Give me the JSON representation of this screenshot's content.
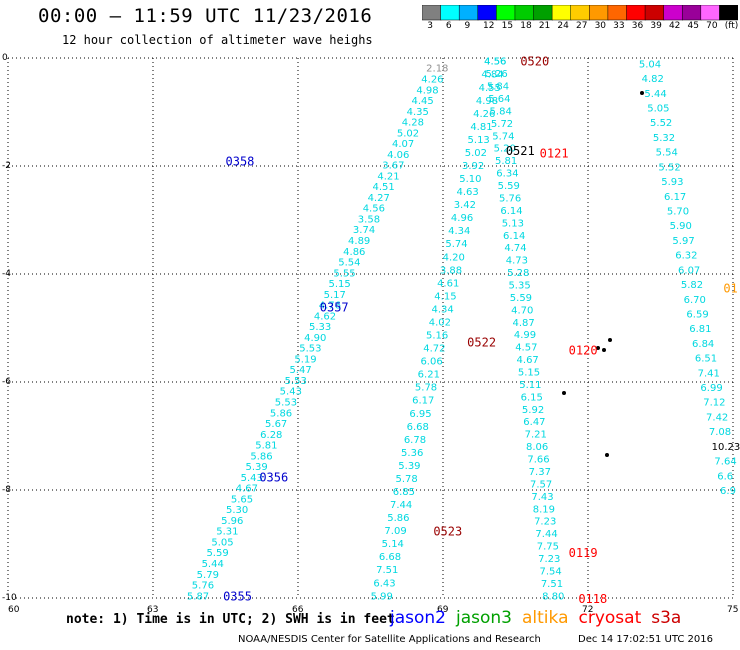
{
  "title": "00:00 – 11:59 UTC 11/23/2016",
  "subtitle": "12 hour collection of altimeter wave heighs",
  "colorbar": {
    "colors": [
      "#808080",
      "#00ffff",
      "#00b0ff",
      "#0000ff",
      "#00ff00",
      "#00cc00",
      "#00a000",
      "#ffff00",
      "#ffcc00",
      "#ff9900",
      "#ff6600",
      "#ff0000",
      "#cc0000",
      "#cc00cc",
      "#990099",
      "#ff66ff",
      "#000000"
    ],
    "labels": [
      "3",
      "6",
      "9",
      "12",
      "15",
      "18",
      "21",
      "24",
      "27",
      "30",
      "33",
      "36",
      "39",
      "42",
      "45",
      "70",
      "(ft)"
    ]
  },
  "axes": {
    "x_ticks": [
      "60",
      "63",
      "66",
      "69",
      "72",
      "75"
    ],
    "y_ticks": [
      "0",
      "-2",
      "-4",
      "-6",
      "-8",
      "-10"
    ]
  },
  "note": "note: 1) Time is in UTC; 2) SWH is in feet",
  "satellites": [
    {
      "name": "jason2",
      "color": "#0000ff"
    },
    {
      "name": "jason3",
      "color": "#00a000"
    },
    {
      "name": "altika",
      "color": "#ff9900"
    },
    {
      "name": "cryosat",
      "color": "#ff0000"
    },
    {
      "name": "s3a",
      "color": "#cc0000"
    }
  ],
  "footer": "NOAA/NESDIS Center for Satellite Applications and Research",
  "footer_date": "Dec 14 17:02:51 UTC 2016",
  "swh_color": "#00d8e0",
  "pass_labels": [
    {
      "text": "0358",
      "color": "#0000cc",
      "lon": 64.5,
      "lat": -1.9
    },
    {
      "text": "0357",
      "color": "#0000cc",
      "lon": 66.45,
      "lat": -4.6
    },
    {
      "text": "0356",
      "color": "#0000cc",
      "lon": 65.2,
      "lat": -7.75
    },
    {
      "text": "0355",
      "color": "#0000cc",
      "lon": 64.45,
      "lat": -9.95
    },
    {
      "text": "0520",
      "color": "#990000",
      "lon": 70.6,
      "lat": -0.05
    },
    {
      "text": "0521",
      "color": "#000000",
      "lon": 70.3,
      "lat": -1.7
    },
    {
      "text": "0121",
      "color": "#ff0000",
      "lon": 71.0,
      "lat": -1.75
    },
    {
      "text": "0522",
      "color": "#990000",
      "lon": 69.5,
      "lat": -5.25
    },
    {
      "text": "0120",
      "color": "#ff0000",
      "lon": 71.6,
      "lat": -5.4
    },
    {
      "text": "0523",
      "color": "#990000",
      "lon": 68.8,
      "lat": -8.75
    },
    {
      "text": "0119",
      "color": "#ff0000",
      "lon": 71.6,
      "lat": -9.15
    },
    {
      "text": "0118",
      "color": "#ff0000",
      "lon": 71.8,
      "lat": -10.0
    },
    {
      "text": "01",
      "color": "#ff9900",
      "lon": 74.8,
      "lat": -4.25
    }
  ],
  "tracks": [
    {
      "start": [
        68.9,
        -0.18
      ],
      "end": [
        63.95,
        -9.95
      ],
      "values": [
        "2.18",
        "4.26",
        "4.98",
        "4.45",
        "4.35",
        "4.28",
        "5.02",
        "4.07",
        "4.06",
        "3.67",
        "4.21",
        "4.51",
        "4.27",
        "4.56",
        "3.58",
        "3.74",
        "4.89",
        "4.86",
        "5.54",
        "5.55",
        "5.15",
        "5.17",
        "4.76",
        "4.62",
        "5.33",
        "4.90",
        "5.53",
        "5.19",
        "5.47",
        "5.53",
        "5.43",
        "5.53",
        "5.86",
        "5.67",
        "6.28",
        "5.81",
        "5.86",
        "5.39",
        "5.43",
        "4.67",
        "5.65",
        "5.30",
        "5.96",
        "5.31",
        "5.05",
        "5.59",
        "5.44",
        "5.79",
        "5.76",
        "5.87"
      ]
    },
    {
      "start": [
        70.1,
        -0.05
      ],
      "end": [
        67.75,
        -9.95
      ],
      "values": [
        "4.56",
        "4.84",
        "4.55",
        "4.98",
        "4.26",
        "4.81",
        "5.13",
        "5.02",
        "3.92",
        "5.10",
        "4.63",
        "3.42",
        "4.96",
        "4.34",
        "5.74",
        "4.20",
        "3.88",
        "4.61",
        "4.15",
        "4.34",
        "4.02",
        "5.16",
        "4.72",
        "6.06",
        "6.21",
        "5.78",
        "6.17",
        "6.95",
        "6.68",
        "6.78",
        "5.36",
        "5.39",
        "5.78",
        "6.85",
        "7.44",
        "5.86",
        "7.09",
        "5.14",
        "6.68",
        "7.51",
        "6.43",
        "5.99"
      ]
    },
    {
      "start": [
        70.1,
        -0.05
      ],
      "end": [
        71.3,
        -9.95
      ],
      "values": [
        "4.56",
        "5.26",
        "5.84",
        "5.64",
        "5.84",
        "5.72",
        "5.74",
        "5.20",
        "5.81",
        "6.34",
        "5.59",
        "5.76",
        "6.14",
        "5.13",
        "6.14",
        "4.74",
        "4.73",
        "5.28",
        "5.35",
        "5.59",
        "4.70",
        "4.87",
        "4.99",
        "4.57",
        "4.67",
        "5.15",
        "5.11",
        "6.15",
        "5.92",
        "6.47",
        "7.21",
        "8.06",
        "7.66",
        "7.37",
        "7.57",
        "7.43",
        "8.19",
        "7.23",
        "7.44",
        "7.75",
        "7.23",
        "7.54",
        "7.51",
        "8.80"
      ]
    },
    {
      "start": [
        73.3,
        -0.1
      ],
      "end": [
        74.98,
        -8.0
      ],
      "values": [
        "5.04",
        "4.82",
        "5.44",
        "5.05",
        "5.52",
        "5.32",
        "5.54",
        "5.52",
        "5.93",
        "6.17",
        "5.70",
        "5.90",
        "5.97",
        "6.32",
        "6.07",
        "5.82",
        "6.70",
        "6.59",
        "6.81",
        "6.84",
        "6.51",
        "7.41",
        "6.99",
        "7.12",
        "7.42",
        "7.08",
        "10.23",
        "7.64",
        "6.6",
        "6.9"
      ]
    }
  ]
}
